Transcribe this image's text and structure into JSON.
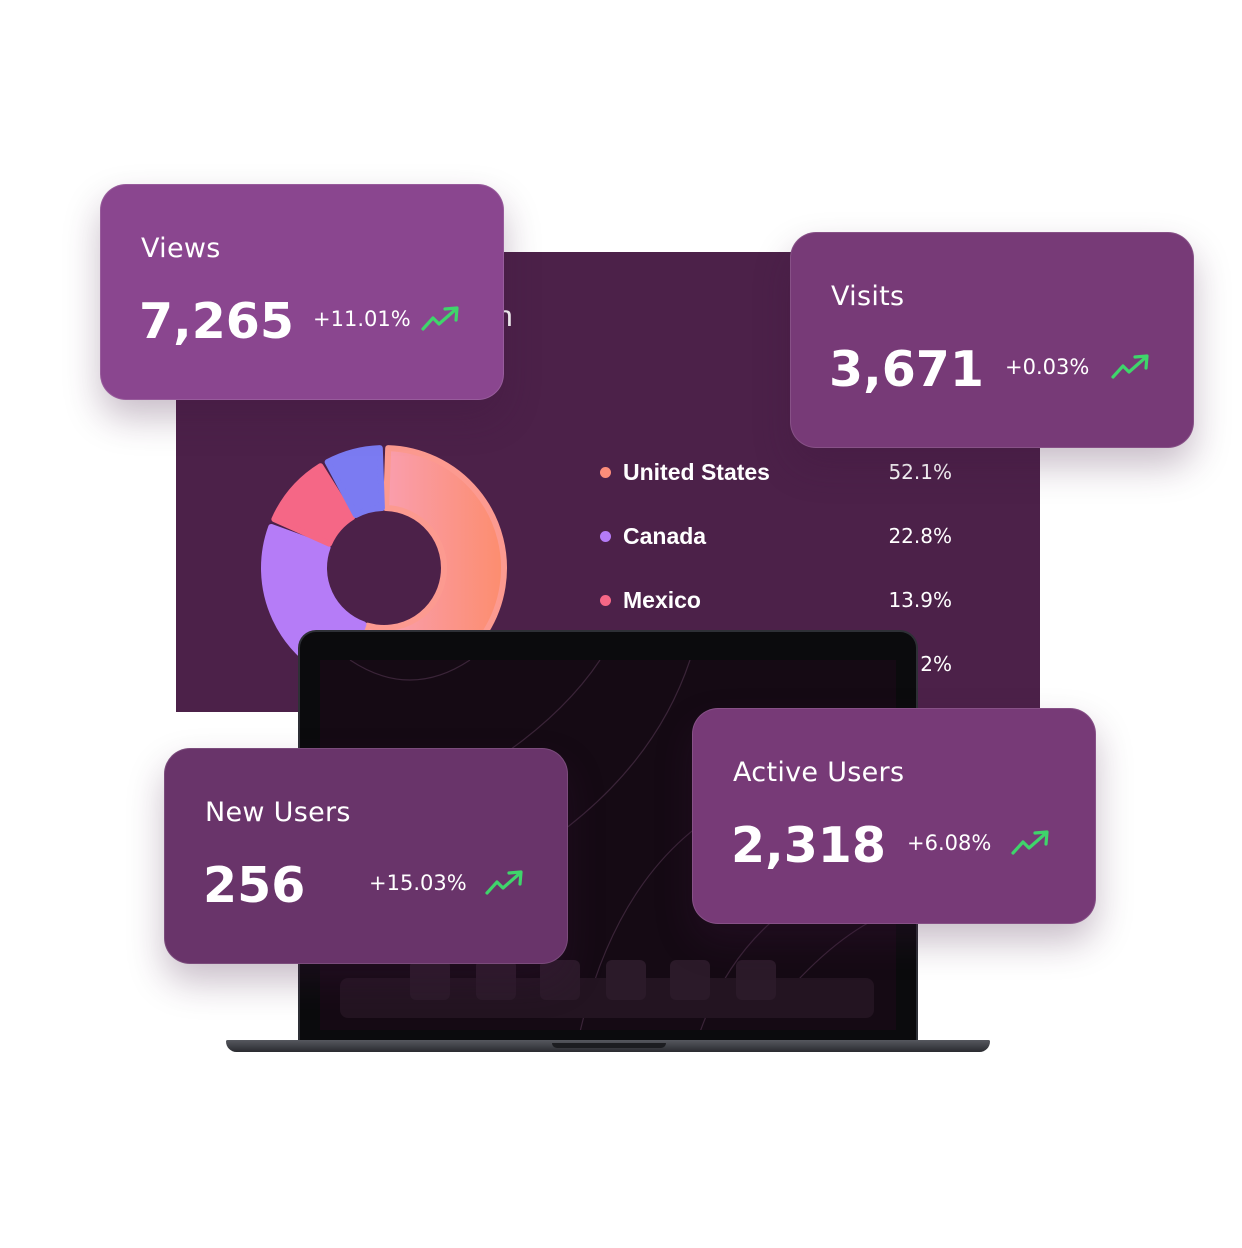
{
  "panel": {
    "title_fragment": "n"
  },
  "country_breakdown": {
    "colors": {
      "united_states": "#fc8d7a",
      "canada": "#b57cf7",
      "mexico": "#f56786",
      "other": "#7b7bf2"
    },
    "legend": [
      {
        "name": "United States",
        "percent": "52.1%",
        "color": "#fc8d7a"
      },
      {
        "name": "Canada",
        "percent": "22.8%",
        "color": "#b57cf7"
      },
      {
        "name": "Mexico",
        "percent": "13.9%",
        "color": "#f56786"
      },
      {
        "name": "",
        "percent": "2%",
        "color": "#7b7bf2"
      }
    ]
  },
  "cards": {
    "views": {
      "label": "Views",
      "value": "7,265",
      "change": "+11.01%",
      "trend_icon": "trend-up-icon"
    },
    "visits": {
      "label": "Visits",
      "value": "3,671",
      "change": "+0.03%",
      "trend_icon": "trend-up-icon"
    },
    "new_users": {
      "label": "New Users",
      "value": "256",
      "change": "+15.03%",
      "trend_icon": "trend-up-icon"
    },
    "active_users": {
      "label": "Active Users",
      "value": "2,318",
      "change": "+6.08%",
      "trend_icon": "trend-up-icon"
    }
  },
  "colors": {
    "panel_bg": "#4c2149",
    "card_views": "#8a468f",
    "card_visits": "#773a77",
    "card_new_users": "#69346a",
    "card_active_users": "#773a77",
    "trend_up": "#3fd56b"
  }
}
